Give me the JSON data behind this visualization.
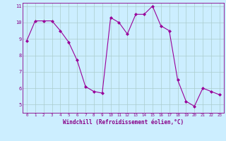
{
  "x": [
    0,
    1,
    2,
    3,
    4,
    5,
    6,
    7,
    8,
    9,
    10,
    11,
    12,
    13,
    14,
    15,
    16,
    17,
    18,
    19,
    20,
    21,
    22,
    23
  ],
  "y": [
    8.9,
    10.1,
    10.1,
    10.1,
    9.5,
    8.8,
    7.7,
    6.1,
    5.8,
    5.7,
    10.3,
    10.0,
    9.3,
    10.5,
    10.5,
    11.0,
    9.8,
    9.5,
    6.5,
    5.2,
    4.9,
    6.0,
    5.8,
    5.6
  ],
  "line_color": "#990099",
  "marker": "D",
  "marker_size": 2,
  "background_color": "#cceeff",
  "grid_color": "#aacccc",
  "xlabel": "Windchill (Refroidissement éolien,°C)",
  "xlabel_color": "#880088",
  "tick_color": "#880088",
  "ylim": [
    4.5,
    11.2
  ],
  "yticks": [
    5,
    6,
    7,
    8,
    9,
    10,
    11
  ],
  "xlim": [
    -0.5,
    23.5
  ],
  "xticks": [
    0,
    1,
    2,
    3,
    4,
    5,
    6,
    7,
    8,
    9,
    10,
    11,
    12,
    13,
    14,
    15,
    16,
    17,
    18,
    19,
    20,
    21,
    22,
    23
  ]
}
